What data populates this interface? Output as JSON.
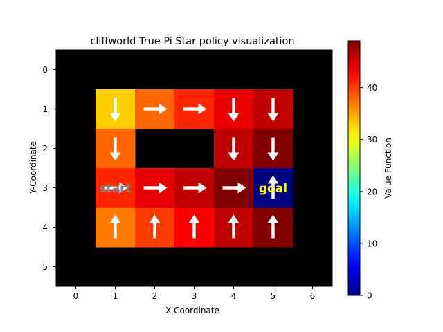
{
  "chart_data": {
    "type": "heatmap",
    "title": "cliffworld True Pi Star policy visualization",
    "xlabel": "X-Coordinate",
    "ylabel": "Y-Coordinate",
    "x_ticks": [
      "0",
      "1",
      "2",
      "3",
      "4",
      "5",
      "6"
    ],
    "y_ticks": [
      "0",
      "1",
      "2",
      "3",
      "4",
      "5"
    ],
    "colorbar": {
      "label": "Value Function",
      "ticks": [
        "0",
        "10",
        "20",
        "30",
        "40"
      ],
      "range": [
        0,
        49
      ],
      "colormap": "jet"
    },
    "grid_values": [
      [
        null,
        null,
        null,
        null,
        null,
        null,
        null
      ],
      [
        null,
        33,
        38,
        41,
        44,
        46,
        null
      ],
      [
        null,
        38,
        null,
        null,
        46,
        49,
        null
      ],
      [
        null,
        41,
        44,
        46,
        49,
        0,
        null
      ],
      [
        null,
        37,
        40,
        43,
        46,
        49,
        null
      ],
      [
        null,
        null,
        null,
        null,
        null,
        null,
        null
      ]
    ],
    "policy_arrows": [
      {
        "x": 1,
        "y": 1,
        "dir": "down"
      },
      {
        "x": 2,
        "y": 1,
        "dir": "right"
      },
      {
        "x": 3,
        "y": 1,
        "dir": "right"
      },
      {
        "x": 4,
        "y": 1,
        "dir": "down"
      },
      {
        "x": 5,
        "y": 1,
        "dir": "down"
      },
      {
        "x": 1,
        "y": 2,
        "dir": "down"
      },
      {
        "x": 4,
        "y": 2,
        "dir": "down"
      },
      {
        "x": 5,
        "y": 2,
        "dir": "down"
      },
      {
        "x": 1,
        "y": 3,
        "dir": "right"
      },
      {
        "x": 2,
        "y": 3,
        "dir": "right"
      },
      {
        "x": 3,
        "y": 3,
        "dir": "right"
      },
      {
        "x": 4,
        "y": 3,
        "dir": "right"
      },
      {
        "x": 5,
        "y": 3,
        "dir": "up"
      },
      {
        "x": 1,
        "y": 4,
        "dir": "up"
      },
      {
        "x": 2,
        "y": 4,
        "dir": "up"
      },
      {
        "x": 3,
        "y": 4,
        "dir": "up"
      },
      {
        "x": 4,
        "y": 4,
        "dir": "up"
      },
      {
        "x": 5,
        "y": 4,
        "dir": "up"
      }
    ],
    "labels": [
      {
        "x": 1,
        "y": 3,
        "text": "start",
        "color": "#808080"
      },
      {
        "x": 5,
        "y": 3,
        "text": "goal",
        "color": "#ffff00"
      }
    ],
    "background_color": "#000000",
    "arrow_color": "#ffffff"
  }
}
